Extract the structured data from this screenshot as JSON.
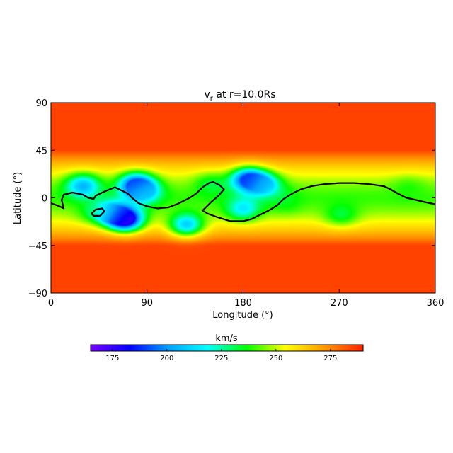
{
  "chart_data": {
    "type": "heatmap",
    "title_main": "v",
    "title_sub": "r",
    "title_rest": " at r=10.0Rs",
    "xlabel": "Longitude (°)",
    "ylabel": "Latitude (°)",
    "xlim": [
      0,
      360
    ],
    "ylim": [
      -90,
      90
    ],
    "xticks": [
      "0",
      "90",
      "180",
      "270",
      "360"
    ],
    "xtick_values": [
      0,
      90,
      180,
      270,
      360
    ],
    "yticks": [
      "90",
      "45",
      "0",
      "−45",
      "−90"
    ],
    "ytick_values": [
      90,
      45,
      0,
      -45,
      -90
    ],
    "colorbar": {
      "label": "km/s",
      "range": [
        165,
        290
      ],
      "ticks": [
        "175",
        "200",
        "225",
        "250",
        "275"
      ],
      "tick_values": [
        175,
        200,
        225,
        250,
        275
      ],
      "colors": [
        "#7a00ff",
        "#0000ff",
        "#00a0ff",
        "#00ffff",
        "#00ff00",
        "#ffff00",
        "#ff9a00",
        "#ff2000"
      ]
    },
    "field": {
      "background_speed_high_lat": 285,
      "background_speed_equator": 240,
      "blobs": [
        {
          "lon": 30,
          "lat": 11,
          "v": 205
        },
        {
          "lon": 40,
          "lat": -12,
          "v": 235
        },
        {
          "lon": 58,
          "lat": -14,
          "v": 200
        },
        {
          "lon": 70,
          "lat": -20,
          "v": 172
        },
        {
          "lon": 80,
          "lat": 12,
          "v": 185
        },
        {
          "lon": 88,
          "lat": 5,
          "v": 215
        },
        {
          "lon": 127,
          "lat": -25,
          "v": 210
        },
        {
          "lon": 150,
          "lat": 12,
          "v": 232
        },
        {
          "lon": 185,
          "lat": 17,
          "v": 185
        },
        {
          "lon": 200,
          "lat": 12,
          "v": 210
        },
        {
          "lon": 180,
          "lat": -10,
          "v": 215
        },
        {
          "lon": 220,
          "lat": -3,
          "v": 235
        },
        {
          "lon": 272,
          "lat": -15,
          "v": 232
        },
        {
          "lon": 335,
          "lat": 8,
          "v": 238
        }
      ]
    },
    "neutral_line": [
      [
        [
          0,
          -5
        ],
        [
          8,
          -8
        ],
        [
          12,
          -10
        ],
        [
          10,
          -2
        ],
        [
          12,
          3
        ],
        [
          20,
          5
        ],
        [
          30,
          3
        ],
        [
          35,
          0
        ],
        [
          40,
          -1
        ],
        [
          42,
          2
        ],
        [
          48,
          5
        ],
        [
          55,
          8
        ],
        [
          60,
          10
        ],
        [
          64,
          8
        ],
        [
          68,
          6
        ],
        [
          72,
          4
        ],
        [
          76,
          0
        ],
        [
          82,
          -5
        ],
        [
          90,
          -8
        ],
        [
          100,
          -10
        ],
        [
          110,
          -9
        ],
        [
          118,
          -6
        ],
        [
          124,
          -3
        ],
        [
          130,
          0
        ],
        [
          136,
          4
        ],
        [
          142,
          10
        ],
        [
          148,
          14
        ],
        [
          152,
          15
        ],
        [
          158,
          12
        ],
        [
          162,
          8
        ],
        [
          157,
          2
        ],
        [
          150,
          -4
        ],
        [
          145,
          -9
        ],
        [
          142,
          -12
        ],
        [
          147,
          -15
        ],
        [
          155,
          -18
        ],
        [
          168,
          -22
        ],
        [
          180,
          -22
        ],
        [
          188,
          -20
        ],
        [
          196,
          -16
        ],
        [
          204,
          -12
        ],
        [
          212,
          -7
        ],
        [
          218,
          -1
        ],
        [
          226,
          4
        ],
        [
          234,
          8
        ],
        [
          244,
          11
        ],
        [
          256,
          13
        ],
        [
          270,
          14
        ],
        [
          284,
          14
        ],
        [
          298,
          13
        ],
        [
          312,
          11
        ],
        [
          318,
          8
        ],
        [
          325,
          4
        ],
        [
          333,
          0
        ],
        [
          342,
          -2
        ],
        [
          350,
          -4
        ],
        [
          360,
          -6
        ]
      ],
      [
        [
          38,
          -15
        ],
        [
          42,
          -11
        ],
        [
          48,
          -10
        ],
        [
          50,
          -13
        ],
        [
          46,
          -17
        ],
        [
          40,
          -17
        ],
        [
          38,
          -15
        ]
      ]
    ]
  }
}
